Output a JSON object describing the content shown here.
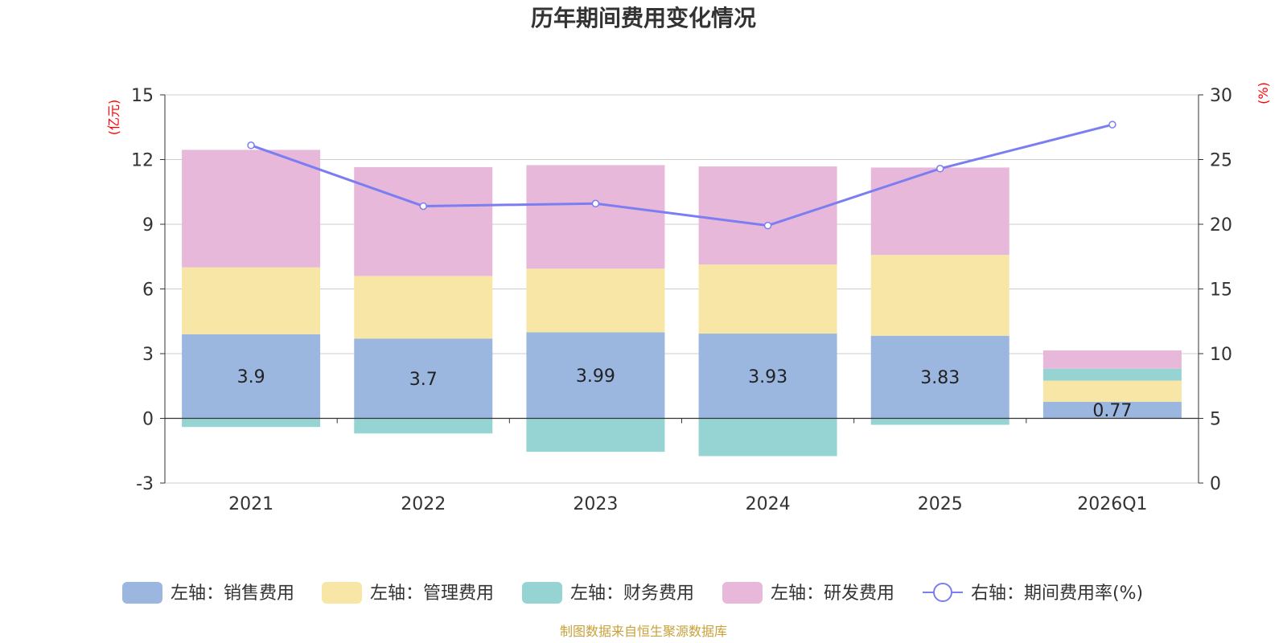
{
  "chart_data": {
    "type": "bar",
    "stacked": true,
    "title": "历年期间费用变化情况",
    "categories": [
      "2021",
      "2022",
      "2023",
      "2024",
      "2025",
      "2026Q1"
    ],
    "left_axis": {
      "unit": "(亿元)",
      "min": -3,
      "max": 15,
      "ticks": [
        "-3",
        "0",
        "3",
        "6",
        "9",
        "12",
        "15"
      ]
    },
    "right_axis": {
      "unit": "(%)",
      "min": 0,
      "max": 30,
      "ticks": [
        "0",
        "5",
        "10",
        "15",
        "20",
        "25",
        "30"
      ]
    },
    "series": [
      {
        "name": "左轴：销售费用",
        "color": "#9bb7e0",
        "values": [
          3.9,
          3.7,
          3.99,
          3.93,
          3.83,
          0.77
        ],
        "labels": [
          "3.9",
          "3.7",
          "3.99",
          "3.93",
          "3.83",
          "0.77"
        ]
      },
      {
        "name": "左轴：管理费用",
        "color": "#f7e6a6",
        "values": [
          3.1,
          2.9,
          2.95,
          3.2,
          3.75,
          0.98
        ]
      },
      {
        "name": "左轴：财务费用",
        "color": "#96d4d4",
        "values": [
          -0.4,
          -0.7,
          -1.55,
          -1.75,
          -0.3,
          0.55
        ]
      },
      {
        "name": "左轴：研发费用",
        "color": "#e7b8da",
        "values": [
          5.45,
          5.05,
          4.8,
          4.55,
          4.05,
          0.85
        ]
      }
    ],
    "line_series": {
      "name": "右轴：期间费用率(%)",
      "color": "#7b7ef0",
      "values": [
        26.1,
        21.4,
        21.6,
        19.9,
        24.3,
        27.7
      ]
    },
    "source_note": "制图数据来自恒生聚源数据库"
  }
}
